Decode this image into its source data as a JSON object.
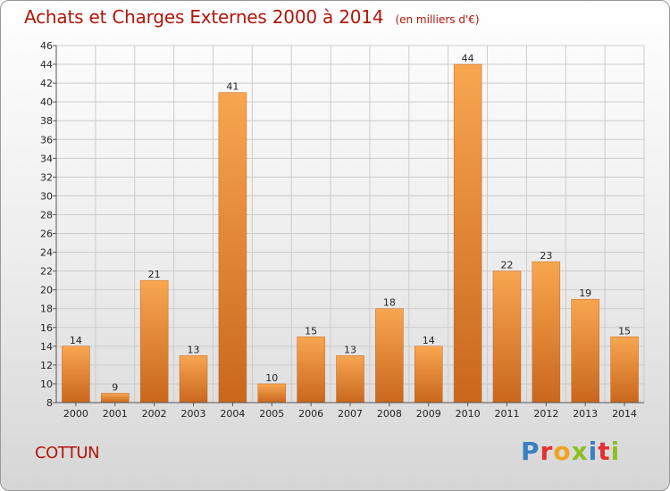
{
  "header": {
    "title": "Achats et Charges Externes 2000 à 2014",
    "subtitle": "(en milliers d'€)"
  },
  "footer": {
    "place": "COTTUN",
    "logo_text": "Proxiti",
    "logo_colors": [
      "#3a7fc4",
      "#e3302f",
      "#f0a31c",
      "#8cbf26",
      "#3a7fc4",
      "#e3302f",
      "#8cbf26"
    ]
  },
  "colors": {
    "bar_top": "#f8a650",
    "bar_bottom": "#c9671d",
    "title": "#b0160a",
    "grid": "#cccccc"
  },
  "chart_data": {
    "type": "bar",
    "categories": [
      "2000",
      "2001",
      "2002",
      "2003",
      "2004",
      "2005",
      "2006",
      "2007",
      "2008",
      "2009",
      "2010",
      "2011",
      "2012",
      "2013",
      "2014"
    ],
    "values": [
      14,
      9,
      21,
      13,
      41,
      10,
      15,
      13,
      18,
      14,
      44,
      22,
      23,
      19,
      15
    ],
    "data_labels": [
      "14",
      "9",
      "21",
      "13",
      "41",
      "10",
      "15",
      "13",
      "18",
      "14",
      "44",
      "22",
      "23",
      "19",
      "15"
    ],
    "y_ticks": [
      "8",
      "10",
      "12",
      "14",
      "16",
      "18",
      "20",
      "22",
      "24",
      "26",
      "28",
      "30",
      "32",
      "34",
      "36",
      "38",
      "40",
      "42",
      "44",
      "46"
    ],
    "ylim": [
      8,
      46
    ],
    "xlabel": "",
    "ylabel": "",
    "grid": true
  }
}
